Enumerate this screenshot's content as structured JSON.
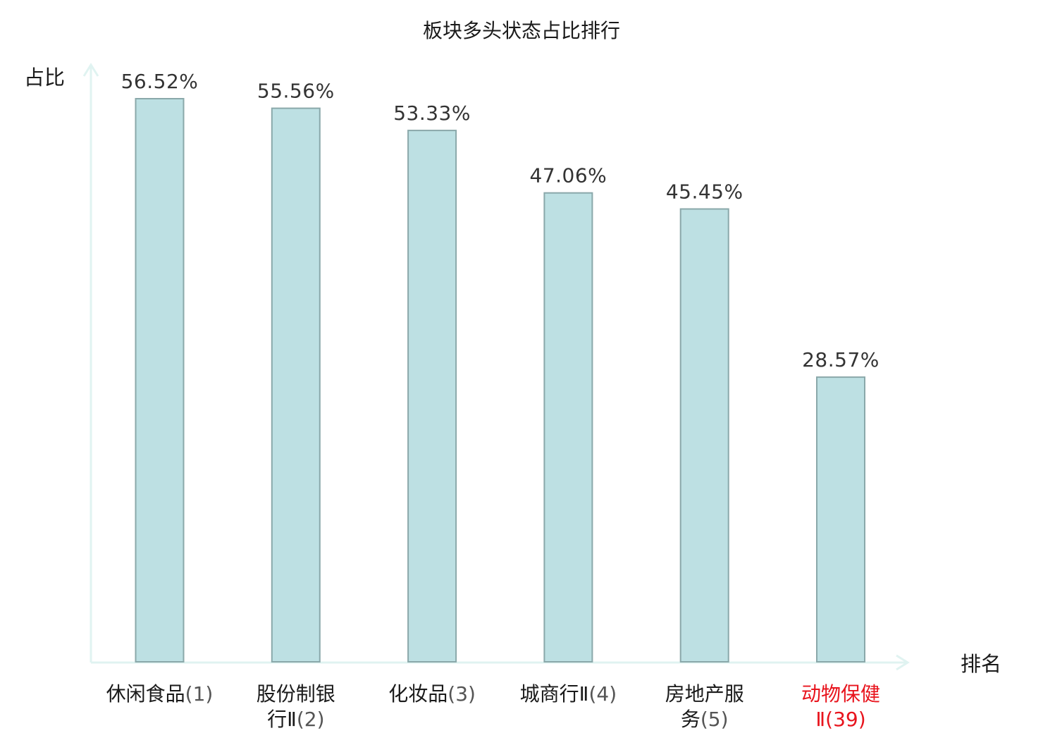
{
  "chart_data": {
    "type": "bar",
    "title": "板块多头状态占比排行",
    "ylabel": "占比",
    "xlabel": "排名",
    "categories": [
      "休闲食品(1)",
      "股份制银行Ⅱ(2)",
      "化妆品(3)",
      "城商行Ⅱ(4)",
      "房地产服务(5)",
      "动物保健Ⅱ(39)"
    ],
    "category_lines": [
      [
        {
          "t": "休闲食品",
          "r": "(1)"
        }
      ],
      [
        {
          "t": "股份制银",
          "r": ""
        },
        {
          "t": "行Ⅱ",
          "r": "(2)"
        }
      ],
      [
        {
          "t": "化妆品",
          "r": "(3)"
        }
      ],
      [
        {
          "t": "城商行Ⅱ",
          "r": "(4)"
        }
      ],
      [
        {
          "t": "房地产服",
          "r": ""
        },
        {
          "t": "务",
          "r": "(5)"
        }
      ],
      [
        {
          "t": "动物保健",
          "r": ""
        },
        {
          "t": "Ⅱ",
          "r": "(39)"
        }
      ]
    ],
    "values": [
      56.52,
      55.56,
      53.33,
      47.06,
      45.45,
      28.57
    ],
    "value_labels": [
      "56.52%",
      "55.56%",
      "53.33%",
      "47.06%",
      "45.45%",
      "28.57%"
    ],
    "highlight_index": 5,
    "ylim": [
      0,
      60
    ],
    "grid": false,
    "colors": {
      "bar_fill": "#bde0e3",
      "bar_stroke": "#8aa8aa",
      "axis": "#e0f3f1",
      "highlight_text": "#e8141d"
    }
  }
}
